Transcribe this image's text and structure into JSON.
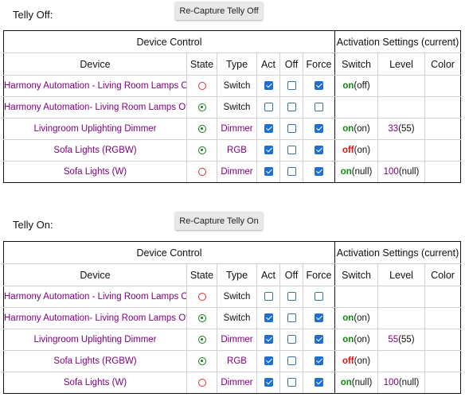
{
  "sections": [
    {
      "label": "Telly Off:",
      "button": "Re-Capture Telly Off",
      "header": {
        "device_control": "Device Control",
        "activation": "Activation Settings (current)",
        "cols": [
          "Device",
          "State",
          "Type",
          "Act",
          "Off",
          "Force",
          "Switch",
          "Level",
          "Color"
        ]
      },
      "rows": [
        {
          "device": "Harmony Automation - Living Room Lamps On",
          "state": "off",
          "type": "Switch",
          "type_style": "plain",
          "act": true,
          "off": false,
          "force": true,
          "switch_val": "on",
          "switch_cur": "(off)",
          "level_val": "",
          "level_cur": "",
          "color": ""
        },
        {
          "device": "Harmony Automation- Living Room Lamps Off",
          "state": "on",
          "type": "Switch",
          "type_style": "plain",
          "act": false,
          "off": false,
          "force": false,
          "switch_val": "",
          "switch_cur": "",
          "level_val": "",
          "level_cur": "",
          "color": ""
        },
        {
          "device": "Livingroom Uplighting Dimmer",
          "state": "on",
          "type": "Dimmer",
          "type_style": "purple",
          "act": true,
          "off": false,
          "force": true,
          "switch_val": "on",
          "switch_cur": "(on)",
          "level_val": "33",
          "level_cur": "(55)",
          "color": ""
        },
        {
          "device": "Sofa Lights (RGBW)",
          "state": "on",
          "type": "RGB",
          "type_style": "purple",
          "act": true,
          "off": false,
          "force": true,
          "switch_val": "off",
          "switch_cur": "(on)",
          "level_val": "",
          "level_cur": "",
          "color": ""
        },
        {
          "device": "Sofa Lights (W)",
          "state": "off",
          "type": "Dimmer",
          "type_style": "purple",
          "act": true,
          "off": false,
          "force": true,
          "switch_val": "on",
          "switch_cur": "(null)",
          "level_val": "100",
          "level_cur": "(null)",
          "color": ""
        }
      ]
    },
    {
      "label": "Telly On:",
      "button": "Re-Capture Telly On",
      "header": {
        "device_control": "Device Control",
        "activation": "Activation Settings (current)",
        "cols": [
          "Device",
          "State",
          "Type",
          "Act",
          "Off",
          "Force",
          "Switch",
          "Level",
          "Color"
        ]
      },
      "rows": [
        {
          "device": "Harmony Automation - Living Room Lamps On",
          "state": "off",
          "type": "Switch",
          "type_style": "plain",
          "act": false,
          "off": false,
          "force": false,
          "switch_val": "",
          "switch_cur": "",
          "level_val": "",
          "level_cur": "",
          "color": ""
        },
        {
          "device": "Harmony Automation- Living Room Lamps Off",
          "state": "on",
          "type": "Switch",
          "type_style": "plain",
          "act": true,
          "off": false,
          "force": true,
          "switch_val": "on",
          "switch_cur": "(on)",
          "level_val": "",
          "level_cur": "",
          "color": ""
        },
        {
          "device": "Livingroom Uplighting Dimmer",
          "state": "on",
          "type": "Dimmer",
          "type_style": "purple",
          "act": true,
          "off": false,
          "force": true,
          "switch_val": "on",
          "switch_cur": "(on)",
          "level_val": "55",
          "level_cur": "(55)",
          "color": ""
        },
        {
          "device": "Sofa Lights (RGBW)",
          "state": "on",
          "type": "RGB",
          "type_style": "purple",
          "act": true,
          "off": false,
          "force": true,
          "switch_val": "off",
          "switch_cur": "(on)",
          "level_val": "",
          "level_cur": "",
          "color": ""
        },
        {
          "device": "Sofa Lights (W)",
          "state": "off",
          "type": "Dimmer",
          "type_style": "purple",
          "act": true,
          "off": false,
          "force": true,
          "switch_val": "on",
          "switch_cur": "(null)",
          "level_val": "100",
          "level_cur": "(null)",
          "color": ""
        }
      ]
    }
  ],
  "colors": {
    "device_text": "#800080",
    "switch_on": "#118811",
    "switch_off": "#e01010",
    "checkbox_accent": "#1e6fd0"
  },
  "icons": {
    "state_on": "radio-selected-icon",
    "state_off": "radio-empty-icon",
    "checked": "checkbox-checked-icon",
    "unchecked": "checkbox-unchecked-icon"
  }
}
